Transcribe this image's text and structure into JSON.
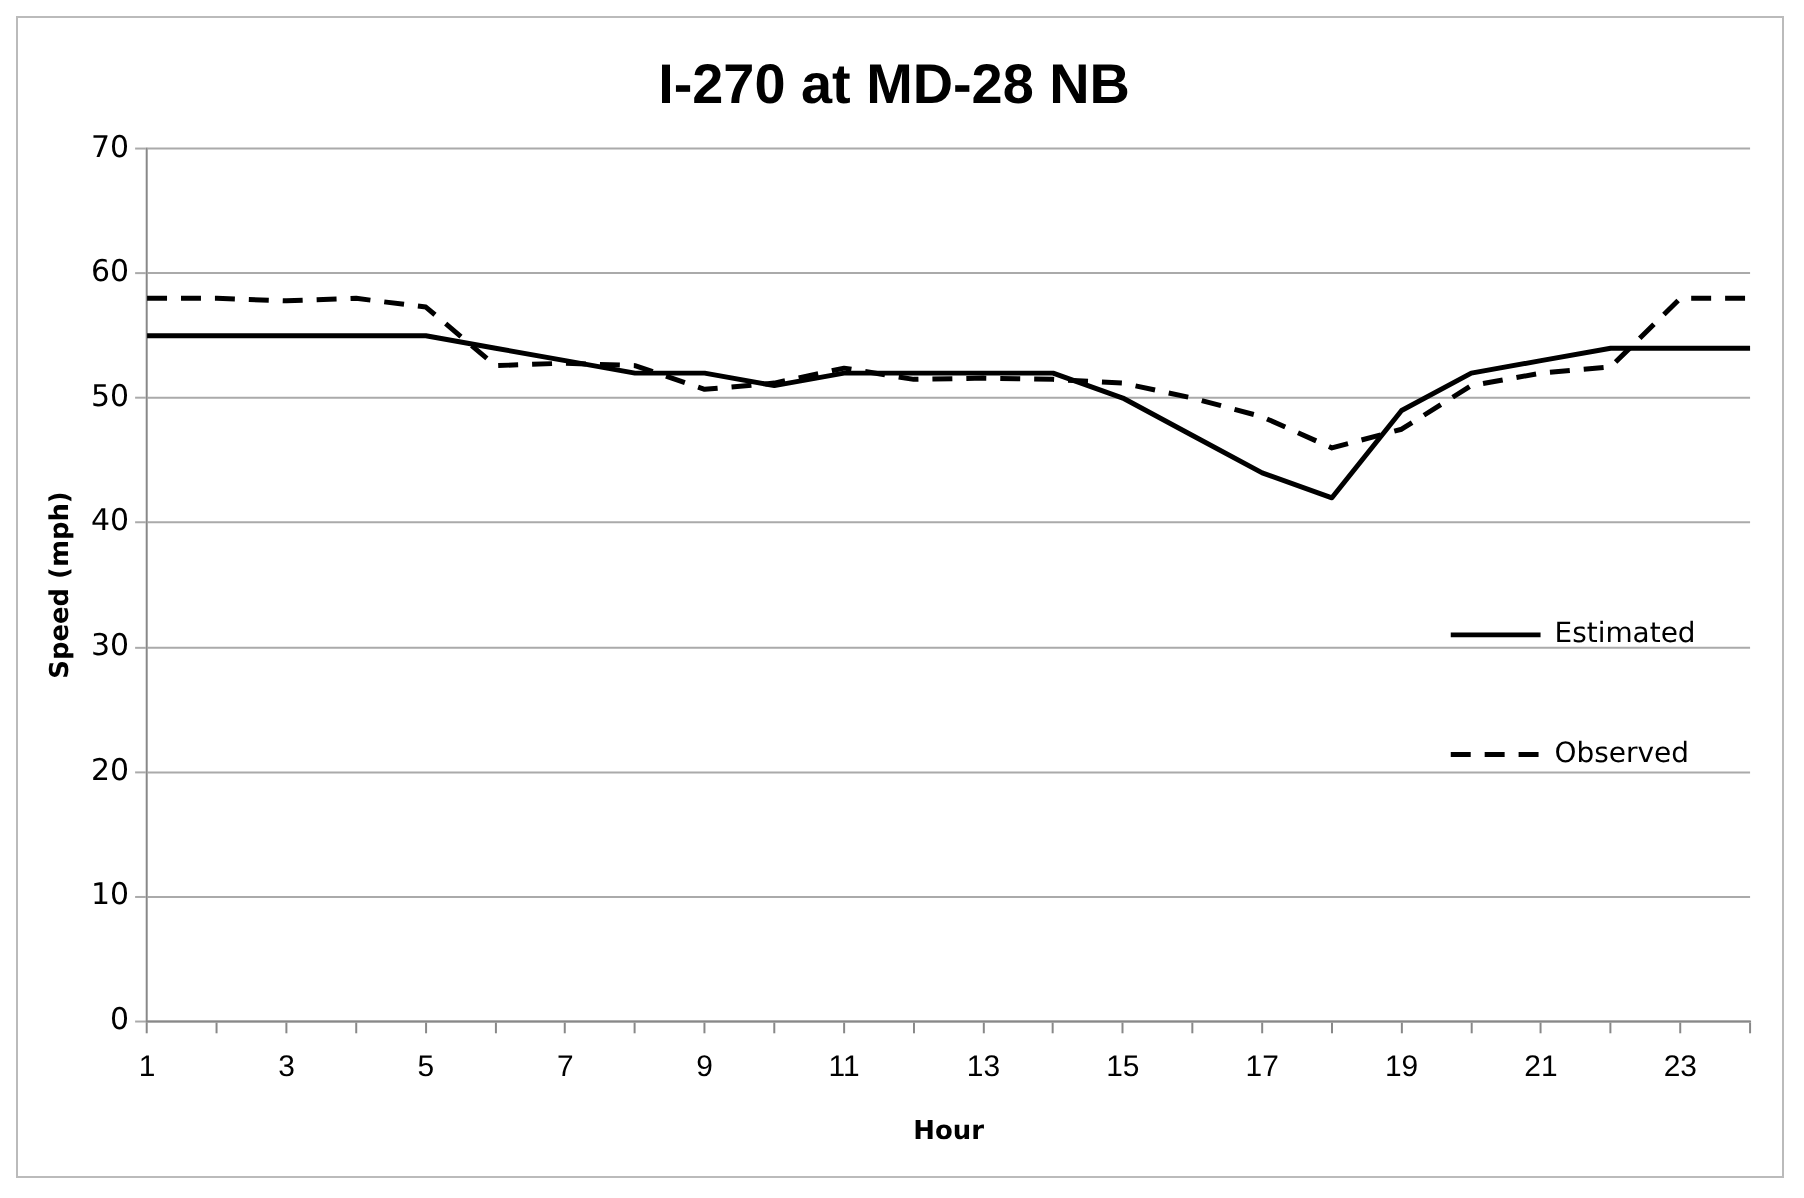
{
  "chart_data": {
    "type": "line",
    "title": "I-270 at MD-28 NB",
    "xlabel": "Hour",
    "ylabel": "Speed (mph)",
    "categories": [
      "1",
      null,
      "3",
      null,
      "5",
      null,
      "7",
      null,
      "9",
      null,
      "11",
      null,
      "13",
      null,
      "15",
      null,
      "17",
      null,
      "19",
      null,
      "21",
      null,
      "23",
      null
    ],
    "series": [
      {
        "name": "Estimated",
        "color": "#000000",
        "line_style": "solid",
        "values": [
          55,
          55,
          55,
          55,
          55,
          54,
          53,
          52,
          52,
          51,
          52,
          52,
          52,
          52,
          50,
          47,
          44,
          42,
          49,
          52,
          53,
          54,
          54,
          54
        ]
      },
      {
        "name": "Observed",
        "color": "#000000",
        "line_style": "dashed",
        "values": [
          58,
          58,
          57.8,
          58,
          57.3,
          52.6,
          52.8,
          52.6,
          50.7,
          51.2,
          52.4,
          51.5,
          51.6,
          51.5,
          51.2,
          50,
          48.5,
          46,
          47.5,
          51,
          52,
          52.5,
          58,
          58
        ]
      }
    ],
    "ylim": [
      0,
      70
    ],
    "yticks": [
      0,
      10,
      20,
      30,
      40,
      50,
      60,
      70
    ],
    "grid": "y",
    "legend": "right",
    "marker": "none"
  }
}
